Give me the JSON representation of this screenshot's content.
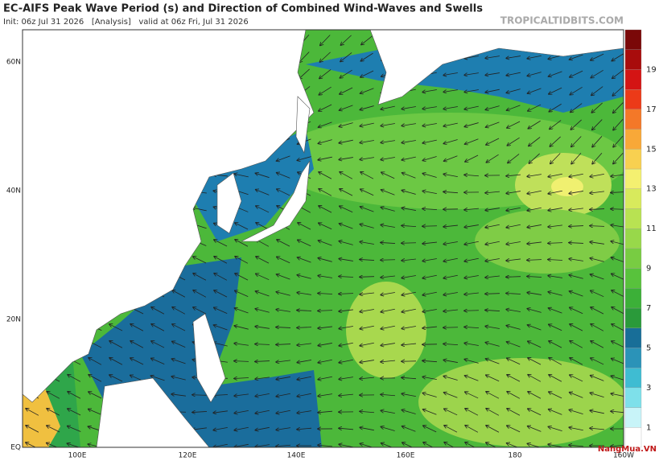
{
  "header": {
    "title": "EC-AIFS Peak Wave Period (s) and Direction of Combined Wind-Waves and Swells",
    "subtitle": "Init: 06z Jul 31 2026   [Analysis]   valid at 06z Fri, Jul 31 2026",
    "site": "TROPICALTIDBITS.COM"
  },
  "map": {
    "lat_labels": [
      "60N",
      "40N",
      "20N",
      "EQ"
    ],
    "lon_labels": [
      "100E",
      "120E",
      "140E",
      "160E",
      "180",
      "160W"
    ]
  },
  "colorbar": {
    "labels": [
      1,
      3,
      5,
      7,
      9,
      11,
      13,
      15,
      17,
      19
    ]
  },
  "watermark": "NangMua.VN"
}
